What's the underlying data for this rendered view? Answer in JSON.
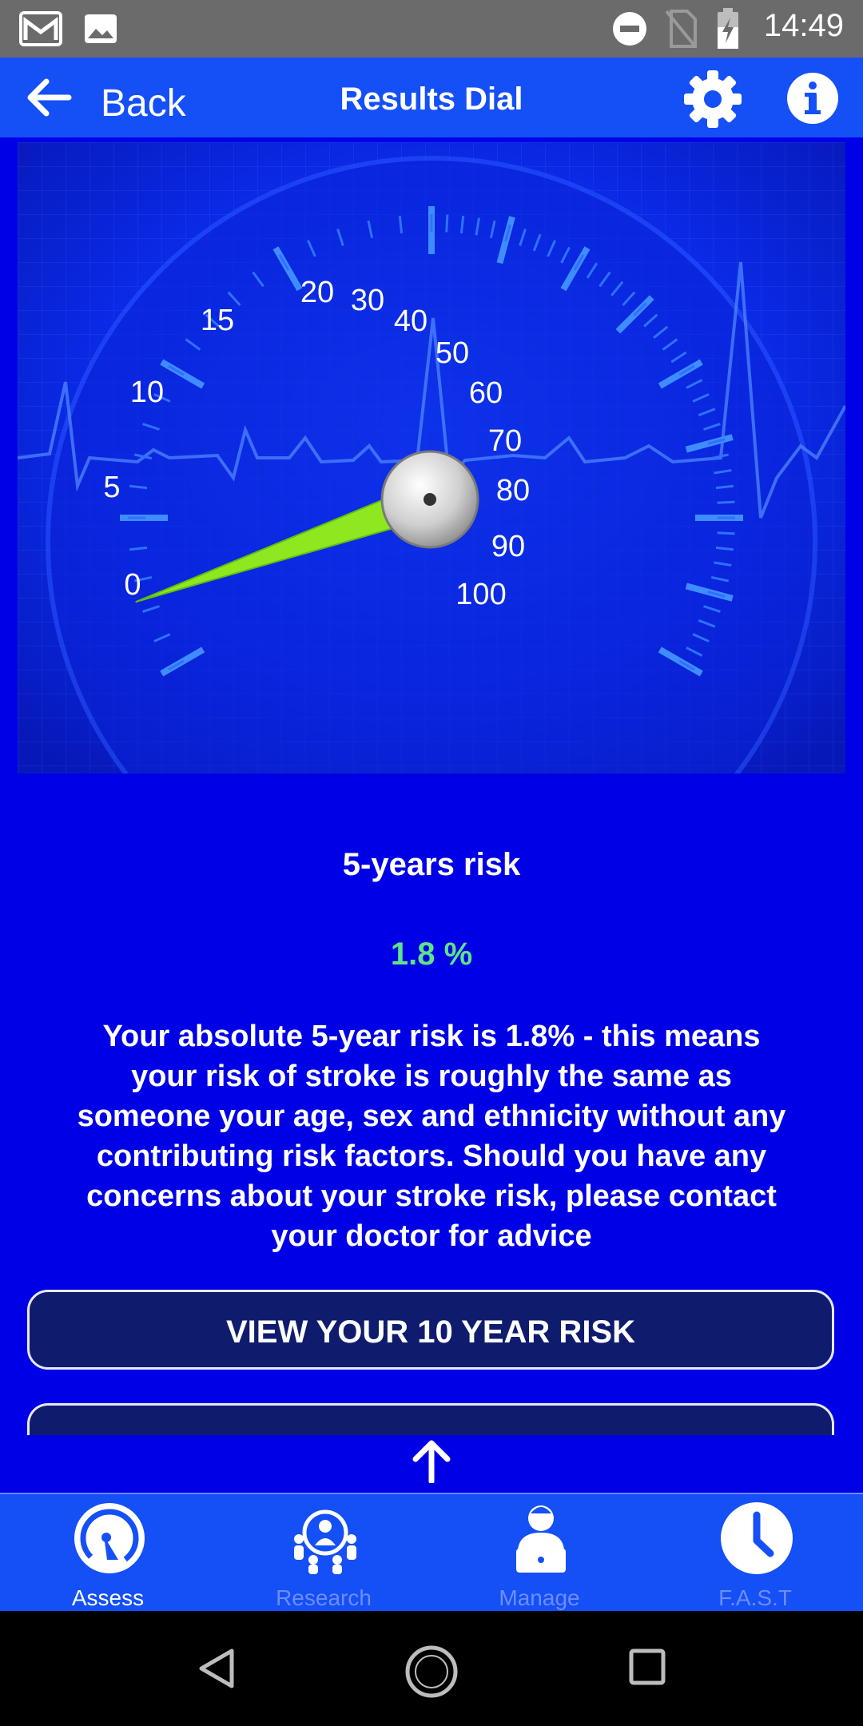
{
  "status_bar": {
    "time": "14:49",
    "icons": [
      "gmail-icon",
      "gallery-icon",
      "dnd-icon",
      "no-sim-icon",
      "battery-icon"
    ]
  },
  "app_bar": {
    "back_label": "Back",
    "title": "Results Dial",
    "icons": [
      "back-arrow-icon",
      "gear-icon",
      "info-icon"
    ]
  },
  "dial": {
    "scale_labels": [
      "0",
      "5",
      "10",
      "15",
      "20",
      "30",
      "40",
      "50",
      "60",
      "70",
      "80",
      "90",
      "100"
    ],
    "needle_value": 1.8
  },
  "results": {
    "heading": "5-years risk",
    "value": "1.8 %",
    "description": "Your absolute 5-year risk is 1.8% - this means your risk of stroke is roughly the same as someone your age, sex and ethnicity without any contributing risk factors. Should you have any concerns about your stroke risk, please contact your doctor for advice"
  },
  "buttons": {
    "view_10_year": "VIEW YOUR 10 YEAR RISK"
  },
  "bottom_nav": {
    "items": [
      {
        "label": "Assess",
        "icon": "gauge-icon",
        "active": true
      },
      {
        "label": "Research",
        "icon": "research-people-icon",
        "active": false
      },
      {
        "label": "Manage",
        "icon": "person-laptop-icon",
        "active": false
      },
      {
        "label": "F.A.S.T",
        "icon": "clock-icon",
        "active": false
      }
    ]
  },
  "colors": {
    "background": "#0000e6",
    "app_bar": "#1450f5",
    "value_green": "#5fe28a",
    "button_fill": "#0f1c6e",
    "needle": "#8fe81f",
    "inactive_nav": "#6e8cff"
  }
}
